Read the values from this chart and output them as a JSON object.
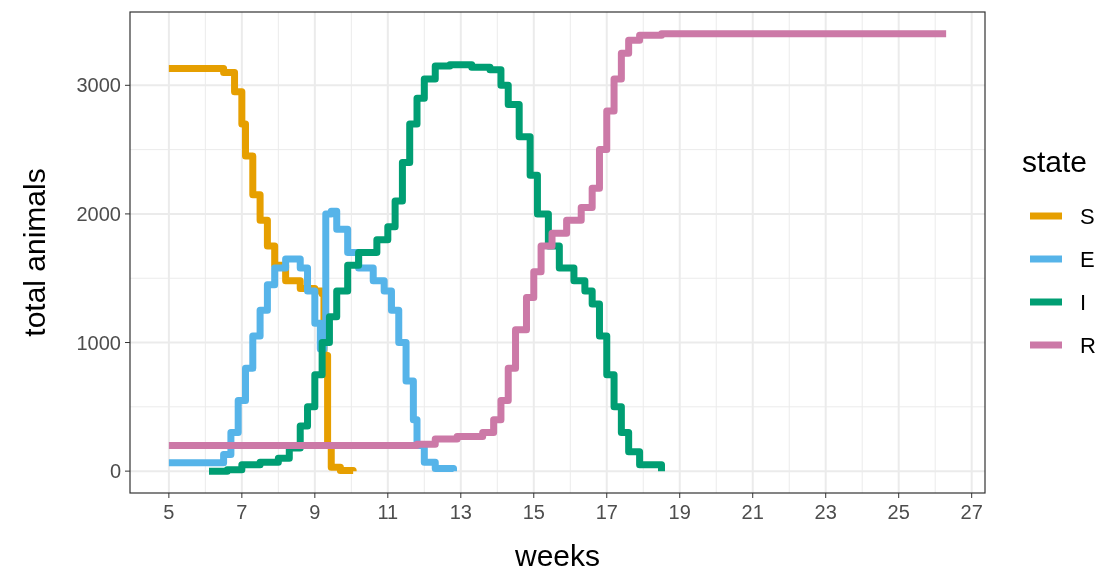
{
  "chart_data": {
    "type": "step",
    "xlabel": "weeks",
    "ylabel": "total animals",
    "legend_title": "state",
    "legend": "right",
    "grid": true,
    "line_style": "solid",
    "xlim": [
      3.935,
      27.365
    ],
    "ylim": [
      -170,
      3570
    ],
    "xticks": [
      5,
      7,
      9,
      11,
      13,
      15,
      17,
      19,
      21,
      23,
      25,
      27
    ],
    "yticks": [
      0,
      1000,
      2000,
      3000
    ],
    "series": [
      {
        "name": "S",
        "color": "#e69f00",
        "x": [
          5,
          6.2,
          6.5,
          6.8,
          7.0,
          7.1,
          7.3,
          7.5,
          7.7,
          7.9,
          8.2,
          8.6,
          9.0,
          9.2,
          9.25,
          9.35,
          9.45,
          9.7,
          10.05
        ],
        "values": [
          3130,
          3130,
          3100,
          2950,
          2700,
          2450,
          2150,
          1950,
          1750,
          1600,
          1480,
          1420,
          1400,
          1380,
          900,
          200,
          30,
          5,
          0
        ]
      },
      {
        "name": "E",
        "color": "#56b4e9",
        "x": [
          5,
          6.3,
          6.5,
          6.7,
          6.9,
          7.1,
          7.3,
          7.5,
          7.7,
          7.9,
          8.2,
          8.4,
          8.6,
          8.8,
          9.0,
          9.15,
          9.25,
          9.3,
          9.45,
          9.6,
          9.9,
          10.2,
          10.6,
          10.9,
          11.1,
          11.3,
          11.5,
          11.7,
          11.8,
          12.0,
          12.3,
          12.8
        ],
        "values": [
          65,
          65,
          130,
          300,
          550,
          800,
          1050,
          1250,
          1450,
          1580,
          1650,
          1650,
          1580,
          1400,
          1150,
          950,
          1100,
          2000,
          2020,
          1880,
          1700,
          1580,
          1480,
          1400,
          1250,
          1000,
          700,
          400,
          200,
          70,
          20,
          0
        ]
      },
      {
        "name": "I",
        "color": "#009e73",
        "x": [
          6.1,
          6.6,
          7.0,
          7.5,
          8.0,
          8.3,
          8.6,
          8.8,
          9.0,
          9.2,
          9.4,
          9.6,
          9.9,
          10.2,
          10.7,
          11.0,
          11.2,
          11.4,
          11.6,
          11.8,
          12.0,
          12.3,
          12.7,
          13.3,
          13.8,
          14.1,
          14.3,
          14.6,
          14.9,
          15.1,
          15.4,
          15.7,
          16.1,
          16.4,
          16.6,
          16.8,
          17.0,
          17.2,
          17.4,
          17.6,
          17.9,
          18.5
        ],
        "values": [
          0,
          10,
          50,
          70,
          100,
          180,
          350,
          500,
          750,
          1000,
          1200,
          1400,
          1600,
          1700,
          1800,
          1900,
          2100,
          2400,
          2700,
          2900,
          3050,
          3150,
          3160,
          3140,
          3120,
          3000,
          2850,
          2600,
          2300,
          2000,
          1750,
          1580,
          1480,
          1400,
          1300,
          1050,
          750,
          500,
          300,
          150,
          50,
          0
        ]
      },
      {
        "name": "R",
        "color": "#cc79a7",
        "x": [
          5,
          11.3,
          11.8,
          12.3,
          12.9,
          13.6,
          13.9,
          14.1,
          14.3,
          14.5,
          14.8,
          15.0,
          15.2,
          15.5,
          15.9,
          16.3,
          16.6,
          16.8,
          17.0,
          17.2,
          17.4,
          17.6,
          17.9,
          18.5,
          26.3
        ],
        "values": [
          200,
          200,
          210,
          250,
          270,
          300,
          400,
          550,
          800,
          1100,
          1350,
          1550,
          1750,
          1850,
          1950,
          2050,
          2200,
          2500,
          2800,
          3050,
          3250,
          3350,
          3390,
          3400,
          3400
        ]
      }
    ]
  }
}
